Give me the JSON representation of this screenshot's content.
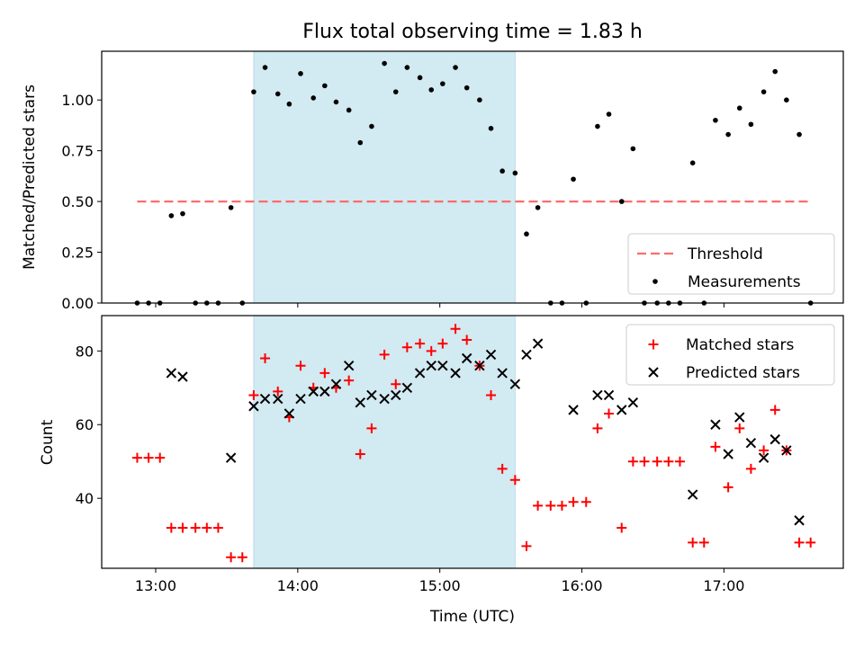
{
  "figure": {
    "title": "Flux total observing time = 1.83 h",
    "xlabel": "Time (UTC)",
    "x_ticks": [
      {
        "value": 13.0,
        "label": "13:00"
      },
      {
        "value": 14.0,
        "label": "14:00"
      },
      {
        "value": 15.0,
        "label": "15:00"
      },
      {
        "value": 16.0,
        "label": "16:00"
      },
      {
        "value": 17.0,
        "label": "17:00"
      }
    ],
    "colors": {
      "highlight": "#add8e6",
      "threshold": "#ff6b6b",
      "measurements": "#000000",
      "matched": "#ff0000",
      "predicted": "#000000"
    }
  },
  "chart_data": [
    {
      "type": "scatter",
      "title": "Flux total observing time = 1.83 h",
      "xlabel": "Time (UTC)",
      "ylabel": "Matched/Predicted stars",
      "xlim": [
        12.62,
        17.84
      ],
      "ylim": [
        0.0,
        1.24
      ],
      "y_ticks": [
        {
          "value": 0.0,
          "label": "0.00"
        },
        {
          "value": 0.25,
          "label": "0.25"
        },
        {
          "value": 0.5,
          "label": "0.50"
        },
        {
          "value": 0.75,
          "label": "0.75"
        },
        {
          "value": 1.0,
          "label": "1.00"
        }
      ],
      "highlight_span": [
        13.69,
        15.53
      ],
      "legend": {
        "location": "lower right",
        "entries": [
          "Threshold",
          "Measurements"
        ]
      },
      "series": [
        {
          "name": "Threshold",
          "kind": "dashed-line",
          "x": [
            12.87,
            17.62
          ],
          "y": [
            0.5,
            0.5
          ]
        },
        {
          "name": "Measurements",
          "kind": "points",
          "x": [
            12.87,
            12.95,
            13.03,
            13.11,
            13.19,
            13.28,
            13.36,
            13.44,
            13.53,
            13.61,
            13.69,
            13.77,
            13.86,
            13.94,
            14.02,
            14.11,
            14.19,
            14.27,
            14.36,
            14.44,
            14.52,
            14.61,
            14.69,
            14.77,
            14.86,
            14.94,
            15.02,
            15.11,
            15.19,
            15.28,
            15.36,
            15.44,
            15.53,
            15.61,
            15.69,
            15.78,
            15.86,
            15.94,
            16.03,
            16.11,
            16.19,
            16.28,
            16.36,
            16.44,
            16.53,
            16.61,
            16.69,
            16.78,
            16.86,
            16.94,
            17.03,
            17.11,
            17.19,
            17.28,
            17.36,
            17.44,
            17.53,
            17.61
          ],
          "y": [
            0.0,
            0.0,
            0.0,
            0.43,
            0.44,
            0.0,
            0.0,
            0.0,
            0.47,
            0.0,
            1.04,
            1.16,
            1.03,
            0.98,
            1.13,
            1.01,
            1.07,
            0.99,
            0.95,
            0.79,
            0.87,
            1.18,
            1.04,
            1.16,
            1.11,
            1.05,
            1.08,
            1.16,
            1.06,
            1.0,
            0.86,
            0.65,
            0.64,
            0.34,
            0.47,
            0.0,
            0.0,
            0.61,
            0.0,
            0.87,
            0.93,
            0.5,
            0.76,
            0.0,
            0.0,
            0.0,
            0.0,
            0.69,
            0.0,
            0.9,
            0.83,
            0.96,
            0.88,
            1.04,
            1.14,
            1.0,
            0.83,
            0.0
          ]
        }
      ]
    },
    {
      "type": "scatter",
      "xlabel": "Time (UTC)",
      "ylabel": "Count",
      "xlim": [
        12.62,
        17.84
      ],
      "ylim": [
        21.0,
        89.6
      ],
      "y_ticks": [
        {
          "value": 40,
          "label": "40"
        },
        {
          "value": 60,
          "label": "60"
        },
        {
          "value": 80,
          "label": "80"
        }
      ],
      "highlight_span": [
        13.69,
        15.53
      ],
      "legend": {
        "location": "upper right",
        "entries": [
          "Matched stars",
          "Predicted stars"
        ]
      },
      "series": [
        {
          "name": "Matched stars",
          "marker": "+",
          "x": [
            12.87,
            12.95,
            13.03,
            13.11,
            13.19,
            13.28,
            13.36,
            13.44,
            13.53,
            13.61,
            13.69,
            13.77,
            13.86,
            13.94,
            14.02,
            14.11,
            14.19,
            14.27,
            14.36,
            14.44,
            14.52,
            14.61,
            14.69,
            14.77,
            14.86,
            14.94,
            15.02,
            15.11,
            15.19,
            15.28,
            15.36,
            15.44,
            15.53,
            15.61,
            15.69,
            15.78,
            15.86,
            15.94,
            16.03,
            16.11,
            16.19,
            16.28,
            16.36,
            16.44,
            16.53,
            16.61,
            16.69,
            16.78,
            16.86,
            16.94,
            17.03,
            17.11,
            17.19,
            17.28,
            17.36,
            17.44,
            17.53,
            17.61
          ],
          "y": [
            51,
            51,
            51,
            32,
            32,
            32,
            32,
            32,
            24,
            24,
            68,
            78,
            69,
            62,
            76,
            70,
            74,
            70,
            72,
            52,
            59,
            79,
            71,
            81,
            82,
            80,
            82,
            86,
            83,
            76,
            68,
            48,
            45,
            27,
            38,
            38,
            38,
            39,
            39,
            59,
            63,
            32,
            50,
            50,
            50,
            50,
            50,
            28,
            28,
            54,
            43,
            59,
            48,
            53,
            64,
            53,
            28,
            28
          ]
        },
        {
          "name": "Predicted stars",
          "marker": "x",
          "x": [
            13.11,
            13.19,
            13.53,
            13.69,
            13.77,
            13.86,
            13.94,
            14.02,
            14.11,
            14.19,
            14.27,
            14.36,
            14.44,
            14.52,
            14.61,
            14.69,
            14.77,
            14.86,
            14.94,
            15.02,
            15.11,
            15.19,
            15.28,
            15.36,
            15.44,
            15.53,
            15.61,
            15.69,
            15.94,
            16.11,
            16.19,
            16.28,
            16.36,
            16.78,
            16.94,
            17.03,
            17.11,
            17.19,
            17.28,
            17.36,
            17.44,
            17.53
          ],
          "y": [
            74,
            73,
            51,
            65,
            67,
            67,
            63,
            67,
            69,
            69,
            71,
            76,
            66,
            68,
            67,
            68,
            70,
            74,
            76,
            76,
            74,
            78,
            76,
            79,
            74,
            71,
            79,
            82,
            64,
            68,
            68,
            64,
            66,
            41,
            60,
            52,
            62,
            55,
            51,
            56,
            53,
            34
          ]
        }
      ]
    }
  ]
}
